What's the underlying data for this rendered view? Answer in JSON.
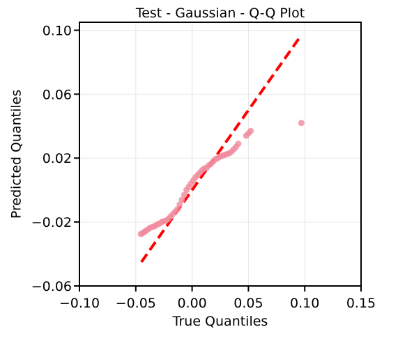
{
  "chart_data": {
    "type": "scatter",
    "title": "Test - Gaussian - Q-Q Plot",
    "xlabel": "True Quantiles",
    "ylabel": "Predicted Quantiles",
    "xlim": [
      -0.1,
      0.15
    ],
    "ylim": [
      -0.06,
      0.105
    ],
    "xticks": [
      -0.1,
      -0.05,
      0.0,
      0.05,
      0.1,
      0.15
    ],
    "xtick_labels": [
      "−0.10",
      "−0.05",
      "0.00",
      "0.05",
      "0.10",
      "0.15"
    ],
    "yticks": [
      -0.06,
      -0.02,
      0.02,
      0.06,
      0.1
    ],
    "ytick_labels": [
      "−0.06",
      "−0.02",
      "0.02",
      "0.06",
      "0.10"
    ],
    "grid": true,
    "point_color": "#f08a9c",
    "line_color": "#ff0000",
    "reference_line": {
      "x": [
        -0.045,
        0.097
      ],
      "y": [
        -0.045,
        0.097
      ]
    },
    "points": {
      "x": [
        -0.0455,
        -0.044,
        -0.042,
        -0.041,
        -0.039,
        -0.037,
        -0.035,
        -0.033,
        -0.031,
        -0.029,
        -0.027,
        -0.025,
        -0.023,
        -0.021,
        -0.019,
        -0.017,
        -0.015,
        -0.013,
        -0.011,
        -0.009,
        -0.007,
        -0.005,
        -0.003,
        -0.001,
        0.001,
        0.003,
        0.005,
        0.007,
        0.009,
        0.011,
        0.013,
        0.015,
        0.017,
        0.019,
        0.021,
        0.023,
        0.025,
        0.027,
        0.029,
        0.031,
        0.033,
        0.035,
        0.037,
        0.039,
        0.041,
        0.048,
        0.05,
        0.052,
        0.097
      ],
      "y": [
        -0.0275,
        -0.027,
        -0.026,
        -0.0255,
        -0.0245,
        -0.0235,
        -0.023,
        -0.0225,
        -0.0215,
        -0.021,
        -0.02,
        -0.0195,
        -0.019,
        -0.018,
        -0.0165,
        -0.015,
        -0.0135,
        -0.012,
        -0.009,
        -0.006,
        -0.003,
        0.0,
        0.002,
        0.004,
        0.006,
        0.008,
        0.0095,
        0.011,
        0.0125,
        0.0135,
        0.014,
        0.0155,
        0.0165,
        0.018,
        0.0195,
        0.02,
        0.021,
        0.0215,
        0.022,
        0.0225,
        0.023,
        0.024,
        0.0255,
        0.027,
        0.029,
        0.034,
        0.0355,
        0.037,
        0.042
      ]
    }
  }
}
